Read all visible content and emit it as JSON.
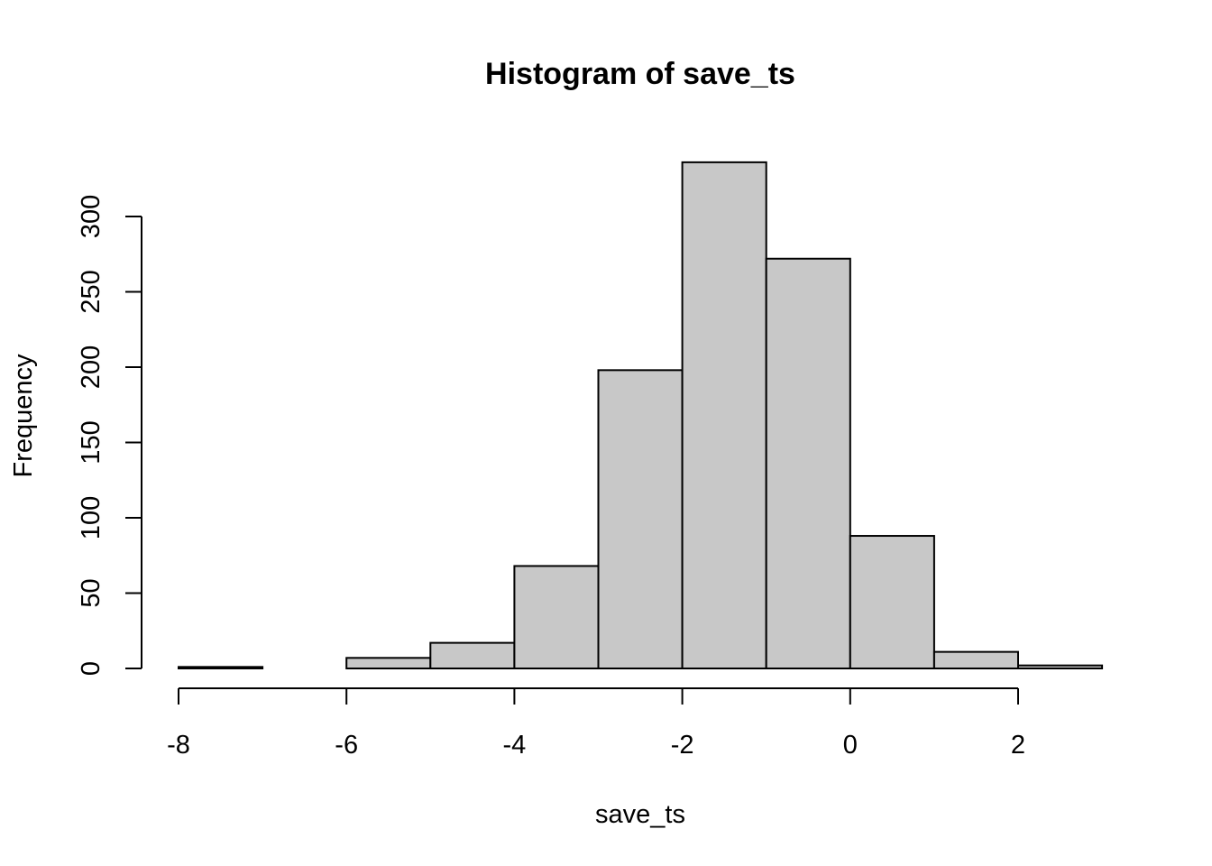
{
  "chart_data": {
    "type": "bar",
    "title": "Histogram of save_ts",
    "xlabel": "save_ts",
    "ylabel": "Frequency",
    "bar_color": "#c8c8c8",
    "edge_color": "#000000",
    "bins": [
      {
        "x0": -8,
        "x1": -7,
        "count": 1
      },
      {
        "x0": -7,
        "x1": -6,
        "count": 0
      },
      {
        "x0": -6,
        "x1": -5,
        "count": 7
      },
      {
        "x0": -5,
        "x1": -4,
        "count": 17
      },
      {
        "x0": -4,
        "x1": -3,
        "count": 68
      },
      {
        "x0": -3,
        "x1": -2,
        "count": 198
      },
      {
        "x0": -2,
        "x1": -1,
        "count": 336
      },
      {
        "x0": -1,
        "x1": 0,
        "count": 272
      },
      {
        "x0": 0,
        "x1": 1,
        "count": 88
      },
      {
        "x0": 1,
        "x1": 2,
        "count": 11
      },
      {
        "x0": 2,
        "x1": 3,
        "count": 2
      }
    ],
    "xticks": [
      -8,
      -6,
      -4,
      -2,
      0,
      2
    ],
    "xtick_labels": [
      "-8",
      "-6",
      "-4",
      "-2",
      "0",
      "2"
    ],
    "yticks": [
      0,
      50,
      100,
      150,
      200,
      250,
      300
    ],
    "ytick_labels": [
      "0",
      "50",
      "100",
      "150",
      "200",
      "250",
      "300"
    ],
    "xlim": [
      -8,
      3
    ],
    "ylim": [
      0,
      336
    ],
    "grid": false
  }
}
